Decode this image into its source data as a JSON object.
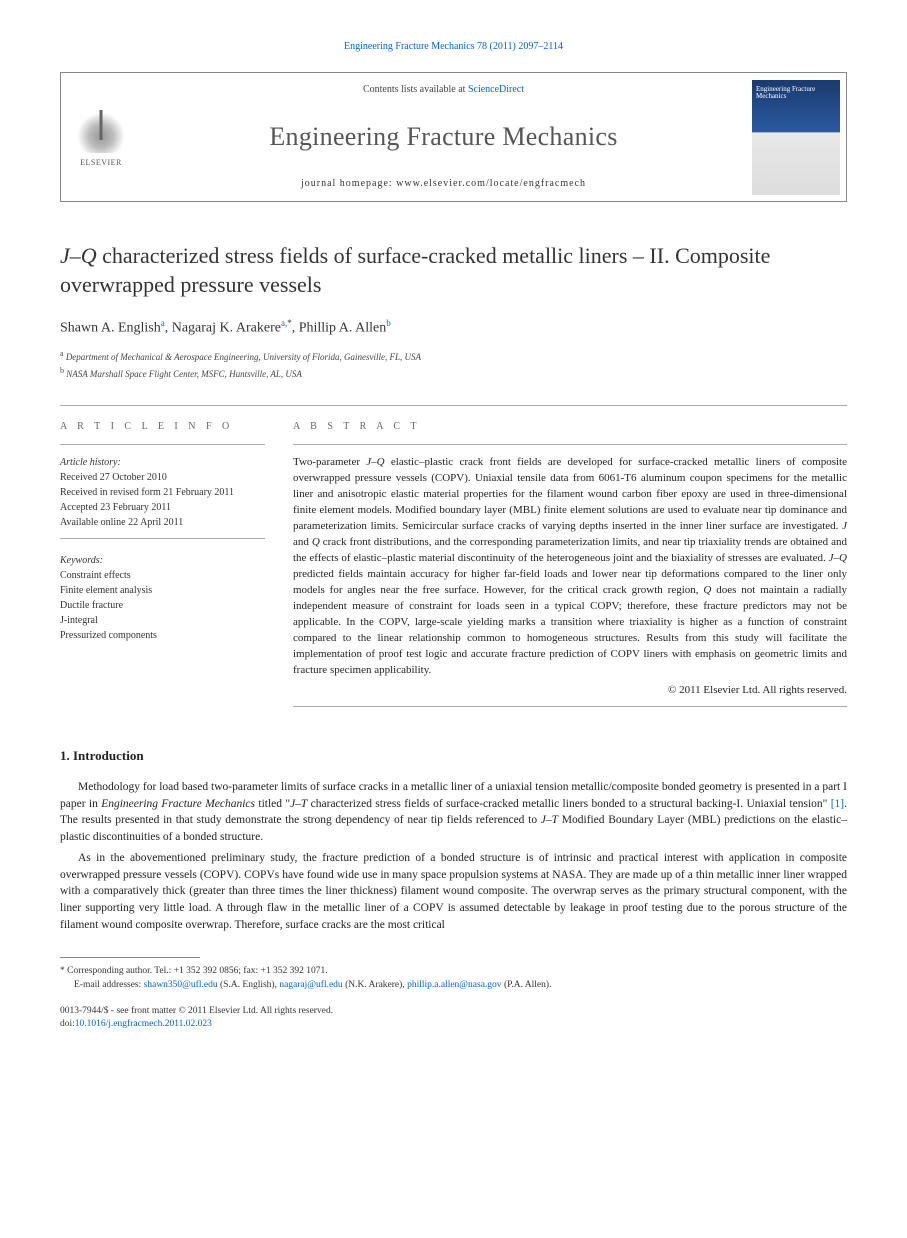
{
  "header": {
    "citation": "Engineering Fracture Mechanics 78 (2011) 2097–2114",
    "contents_prefix": "Contents lists available at ",
    "contents_link": "ScienceDirect",
    "journal_title": "Engineering Fracture Mechanics",
    "homepage_label": "journal homepage: www.elsevier.com/locate/engfracmech",
    "publisher": "ELSEVIER",
    "cover_text": "Engineering Fracture Mechanics"
  },
  "article": {
    "title_pre": "J–Q",
    "title_rest": " characterized stress fields of surface-cracked metallic liners – II. Composite overwrapped pressure vessels",
    "authors_html": "Shawn A. English",
    "author1_sup": "a",
    "author2": "Nagaraj K. Arakere",
    "author2_sup": "a,",
    "author2_ast": "*",
    "author3": "Phillip A. Allen",
    "author3_sup": "b",
    "aff_a_sup": "a",
    "aff_a": "Department of Mechanical & Aerospace Engineering, University of Florida, Gainesville, FL, USA",
    "aff_b_sup": "b",
    "aff_b": "NASA Marshall Space Flight Center, MSFC, Huntsville, AL, USA"
  },
  "info": {
    "section_label": "A R T I C L E   I N F O",
    "history_hdr": "Article history:",
    "received": "Received 27 October 2010",
    "revised": "Received in revised form 21 February 2011",
    "accepted": "Accepted 23 February 2011",
    "online": "Available online 22 April 2011",
    "keywords_hdr": "Keywords:",
    "kw1": "Constraint effects",
    "kw2": "Finite element analysis",
    "kw3": "Ductile fracture",
    "kw4": "J-integral",
    "kw5": "Pressurized components"
  },
  "abstract": {
    "section_label": "A B S T R A C T",
    "text_1": "Two-parameter ",
    "jq1": "J–Q",
    "text_2": " elastic–plastic crack front fields are developed for surface-cracked metallic liners of composite overwrapped pressure vessels (COPV). Uniaxial tensile data from 6061-T6 aluminum coupon specimens for the metallic liner and anisotropic elastic material properties for the filament wound carbon fiber epoxy are used in three-dimensional finite element models. Modified boundary layer (MBL) finite element solutions are used to evaluate near tip dominance and parameterization limits. Semicircular surface cracks of varying depths inserted in the inner liner surface are investigated. ",
    "j1": "J",
    "text_3": " and ",
    "q1": "Q",
    "text_4": " crack front distributions, and the corresponding parameterization limits, and near tip triaxiality trends are obtained and the effects of elastic–plastic material discontinuity of the heterogeneous joint and the biaxiality of stresses are evaluated. ",
    "jq2": "J–Q",
    "text_5": " predicted fields maintain accuracy for higher far-field loads and lower near tip deformations compared to the liner only models for angles near the free surface. However, for the critical crack growth region, ",
    "q2": "Q",
    "text_6": " does not maintain a radially independent measure of constraint for loads seen in a typical COPV; therefore, these fracture predictors may not be applicable. In the COPV, large-scale yielding marks a transition where triaxiality is higher as a function of constraint compared to the linear relationship common to homogeneous structures. Results from this study will facilitate the implementation of proof test logic and accurate fracture prediction of COPV liners with emphasis on geometric limits and fracture specimen applicability.",
    "copyright": "© 2011 Elsevier Ltd. All rights reserved."
  },
  "intro": {
    "heading": "1. Introduction",
    "p1_a": "Methodology for load based two-parameter limits of surface cracks in a metallic liner of a uniaxial tension metallic/composite bonded geometry is presented in a part I paper in ",
    "p1_journal": "Engineering Fracture Mechanics",
    "p1_b": " titled \"",
    "p1_jt": "J–T",
    "p1_c": " characterized stress fields of surface-cracked metallic liners bonded to a structural backing-I. Uniaxial tension\" ",
    "p1_ref": "[1]",
    "p1_d": ". The results presented in that study demonstrate the strong dependency of near tip fields referenced to ",
    "p1_jt2": "J–T",
    "p1_e": " Modified Boundary Layer (MBL) predictions on the elastic–plastic discontinuities of a bonded structure.",
    "p2": "As in the abovementioned preliminary study, the fracture prediction of a bonded structure is of intrinsic and practical interest with application in composite overwrapped pressure vessels (COPV). COPVs have found wide use in many space propulsion systems at NASA. They are made up of a thin metallic inner liner wrapped with a comparatively thick (greater than three times the liner thickness) filament wound composite. The overwrap serves as the primary structural component, with the liner supporting very little load. A through flaw in the metallic liner of a COPV is assumed detectable by leakage in proof testing due to the porous structure of the filament wound composite overwrap. Therefore, surface cracks are the most critical"
  },
  "footnote": {
    "corr": "* Corresponding author. Tel.: +1 352 392 0856; fax: +1 352 392 1071.",
    "email_label": "E-mail addresses: ",
    "email1": "shawn350@ufl.edu",
    "email1_who": " (S.A. English), ",
    "email2": "nagaraj@ufl.edu",
    "email2_who": " (N.K. Arakere), ",
    "email3": "phillip.a.allen@nasa.gov",
    "email3_who": " (P.A. Allen)."
  },
  "bottom": {
    "issn": "0013-7944/$ - see front matter © 2011 Elsevier Ltd. All rights reserved.",
    "doi_label": "doi:",
    "doi": "10.1016/j.engfracmech.2011.02.023"
  },
  "colors": {
    "link": "#0066cc",
    "rule": "#aaaaaa",
    "text": "#222222"
  }
}
